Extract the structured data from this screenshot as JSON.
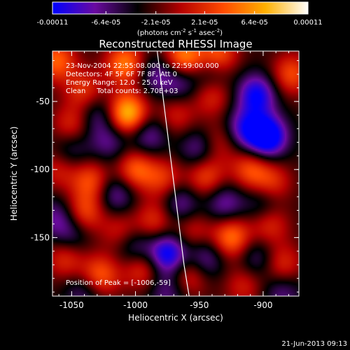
{
  "colorbar": {
    "tick_labels": [
      "-0.00011",
      "-6.4e-05",
      "-2.1e-05",
      "2.1e-05",
      "6.4e-05",
      "0.00011"
    ],
    "ticks": [
      -0.00011,
      -6.4e-05,
      -2.1e-05,
      2.1e-05,
      6.4e-05,
      0.00011
    ],
    "range": [
      -0.00011,
      0.00011
    ],
    "unit_label_prefix": "(photons cm",
    "unit_exp1": "-2",
    "unit_mid1": " s",
    "unit_exp2": "-1",
    "unit_mid2": " asec",
    "unit_exp3": "-2",
    "unit_suffix": ")",
    "colors": [
      "#0000ff",
      "#6a0aa0",
      "#000000",
      "#b40000",
      "#ff4a00",
      "#ffb000",
      "#ffffff"
    ]
  },
  "info_lines": [
    "23-Nov-2004 22:55:08.000 to 22:59:00.000",
    "Detectors: 4F 5F 6F 7F 8F, Att 0",
    "Energy Range: 12.0 - 25.0 keV",
    "Clean     Total counts: 2.70E+03"
  ],
  "peak_label": "Position of Peak = [-1006,-59]",
  "footer_date": "21-Jun-2013 09:13",
  "chart_data": {
    "type": "heatmap",
    "title": "Reconstructed RHESSI Image",
    "xlabel": "Heliocentric X (arcsec)",
    "ylabel": "Heliocentric Y (arcsec)",
    "xlim": [
      -1065,
      -872
    ],
    "ylim": [
      -193,
      -13
    ],
    "x_ticks": [
      -1050,
      -1000,
      -950,
      -900
    ],
    "y_ticks": [
      -50,
      -100,
      -150
    ],
    "x_tick_labels": [
      "-1050",
      "-1000",
      "-950",
      "-900"
    ],
    "y_tick_labels": [
      "-50",
      "-100",
      "-150"
    ],
    "peak": [
      -1006,
      -59
    ],
    "limb_curve": {
      "x": [
        -983,
        -978,
        -974,
        -970,
        -966,
        -962,
        -958
      ],
      "y": [
        -13,
        -50,
        -80,
        -110,
        -140,
        -170,
        -193
      ]
    },
    "sources": [
      {
        "x": -1006,
        "y": -59,
        "value": 0.00011
      },
      {
        "x": -1062,
        "y": -20,
        "value": 7e-05
      },
      {
        "x": -1008,
        "y": -22,
        "value": 8e-05
      },
      {
        "x": -962,
        "y": -18,
        "value": 9e-05
      },
      {
        "x": -935,
        "y": -16,
        "value": 7e-05
      },
      {
        "x": -878,
        "y": -30,
        "value": 6e-05
      },
      {
        "x": -1040,
        "y": -42,
        "value": 5e-05
      },
      {
        "x": -1050,
        "y": -68,
        "value": 5e-05
      },
      {
        "x": -1060,
        "y": -100,
        "value": 4e-05
      },
      {
        "x": -1035,
        "y": -108,
        "value": 6e-05
      },
      {
        "x": -1000,
        "y": -100,
        "value": 7e-05
      },
      {
        "x": -978,
        "y": -107,
        "value": 5e-05
      },
      {
        "x": -968,
        "y": -60,
        "value": 4e-05
      },
      {
        "x": -940,
        "y": -45,
        "value": 5e-05
      },
      {
        "x": -935,
        "y": -80,
        "value": 4e-05
      },
      {
        "x": -945,
        "y": -105,
        "value": 6e-05
      },
      {
        "x": -910,
        "y": -100,
        "value": 6e-05
      },
      {
        "x": -893,
        "y": -110,
        "value": 5e-05
      },
      {
        "x": -1040,
        "y": -132,
        "value": 6e-05
      },
      {
        "x": -1012,
        "y": -145,
        "value": 4e-05
      },
      {
        "x": -985,
        "y": -138,
        "value": 5e-05
      },
      {
        "x": -955,
        "y": -145,
        "value": 4e-05
      },
      {
        "x": -925,
        "y": -150,
        "value": 8e-05
      },
      {
        "x": -895,
        "y": -140,
        "value": 5e-05
      },
      {
        "x": -1055,
        "y": -165,
        "value": 5e-05
      },
      {
        "x": -1028,
        "y": -178,
        "value": 7e-05
      },
      {
        "x": -995,
        "y": -172,
        "value": 6e-05
      },
      {
        "x": -958,
        "y": -178,
        "value": 5e-05
      },
      {
        "x": -915,
        "y": -185,
        "value": 4e-05
      },
      {
        "x": -885,
        "y": -170,
        "value": 5e-05
      },
      {
        "x": -1020,
        "y": -80,
        "value": -4e-05
      },
      {
        "x": -990,
        "y": -75,
        "value": -5e-05
      },
      {
        "x": -965,
        "y": -35,
        "value": -5e-05
      },
      {
        "x": -940,
        "y": -30,
        "value": -4e-05
      },
      {
        "x": -905,
        "y": -45,
        "value": -8e-05
      },
      {
        "x": -897,
        "y": -76,
        "value": -0.00011
      },
      {
        "x": -915,
        "y": -70,
        "value": -6e-05
      },
      {
        "x": -950,
        "y": -85,
        "value": -5e-05
      },
      {
        "x": -1050,
        "y": -85,
        "value": -4e-05
      },
      {
        "x": -1030,
        "y": -60,
        "value": -4e-05
      },
      {
        "x": -1015,
        "y": -118,
        "value": -5e-05
      },
      {
        "x": -965,
        "y": -125,
        "value": -5e-05
      },
      {
        "x": -930,
        "y": -125,
        "value": -5e-05
      },
      {
        "x": -900,
        "y": -125,
        "value": -4e-05
      },
      {
        "x": -1050,
        "y": -148,
        "value": -4e-05
      },
      {
        "x": -1000,
        "y": -158,
        "value": -5e-05
      },
      {
        "x": -975,
        "y": -162,
        "value": -9e-05
      },
      {
        "x": -945,
        "y": -165,
        "value": -5e-05
      },
      {
        "x": -905,
        "y": -165,
        "value": -4e-05
      },
      {
        "x": -1040,
        "y": -190,
        "value": -4e-05
      },
      {
        "x": -975,
        "y": -190,
        "value": -4e-05
      },
      {
        "x": -885,
        "y": -190,
        "value": -4e-05
      },
      {
        "x": -1062,
        "y": -135,
        "value": -4e-05
      },
      {
        "x": -985,
        "y": -30,
        "value": -4e-05
      }
    ]
  }
}
